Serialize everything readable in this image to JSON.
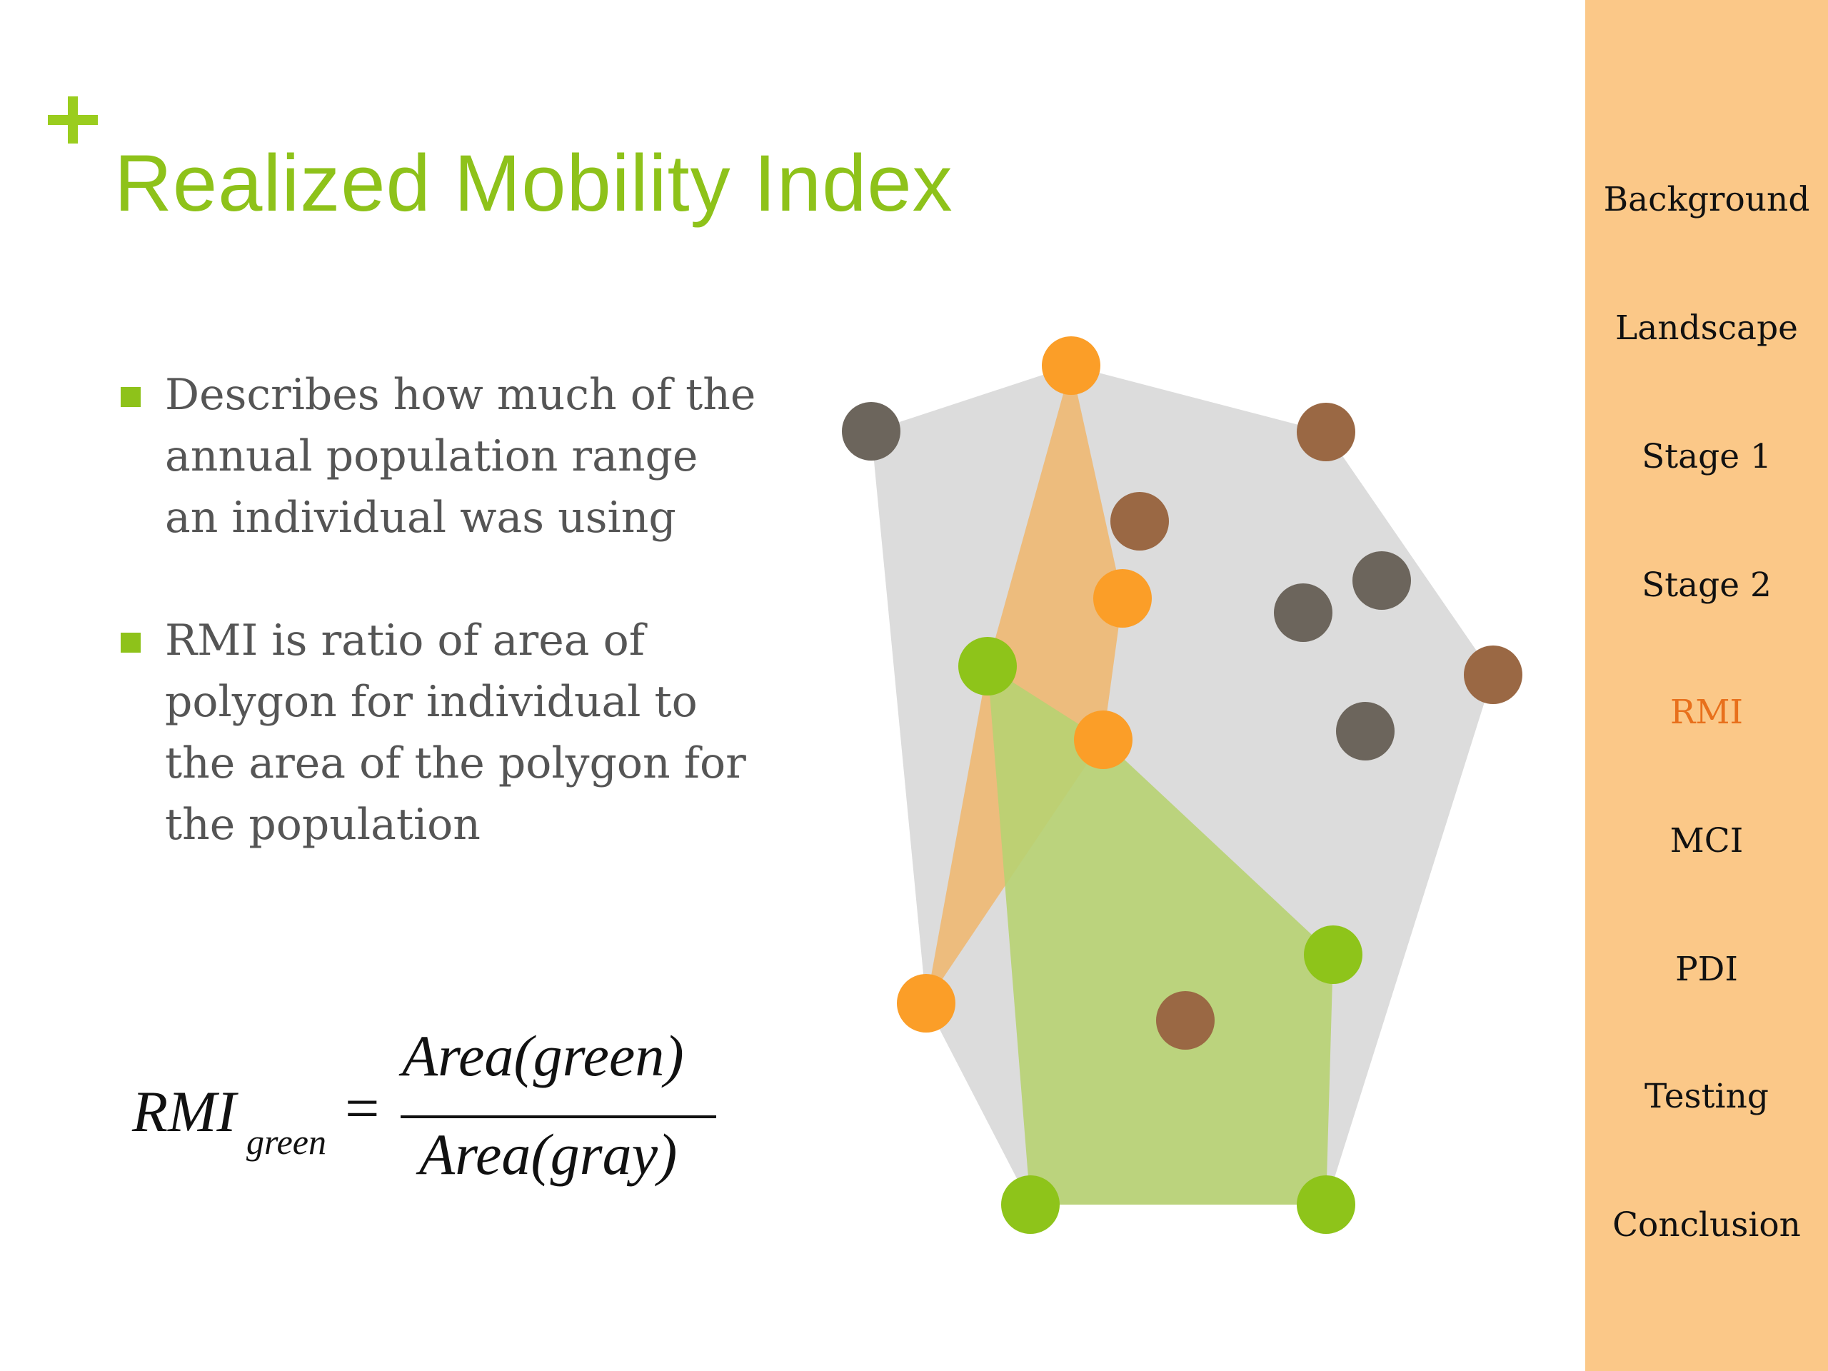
{
  "slide": {
    "title": "Realized Mobility Index",
    "bullets": [
      {
        "text": "Describes how much of the annual population range an individual was using"
      },
      {
        "text": "RMI is ratio of area of polygon for individual to the area of the polygon for the population"
      }
    ],
    "formula": {
      "lhs": "RMI",
      "lhs_subscript": "green",
      "equals": "=",
      "numerator": "Area(green)",
      "denominator": "Area(gray)"
    }
  },
  "sidebar": {
    "items": [
      {
        "label": "Background",
        "active": false
      },
      {
        "label": "Landscape",
        "active": false
      },
      {
        "label": "Stage 1",
        "active": false
      },
      {
        "label": "Stage 2",
        "active": false
      },
      {
        "label": "RMI",
        "active": true
      },
      {
        "label": "MCI",
        "active": false
      },
      {
        "label": "PDI",
        "active": false
      },
      {
        "label": "Testing",
        "active": false
      },
      {
        "label": "Conclusion",
        "active": false
      }
    ]
  },
  "colors": {
    "accent_green": "#8ec21a",
    "point_green": "#8ec41a",
    "point_orange": "#fb9e28",
    "point_brown": "#9a6844",
    "point_gray": "#6c655c",
    "polygon_gray": "#dcdcdc",
    "polygon_orange": "#f0b66c",
    "polygon_green": "#b7d172",
    "sidebar_bg": "#fbc888",
    "active_nav": "#e8701c"
  }
}
